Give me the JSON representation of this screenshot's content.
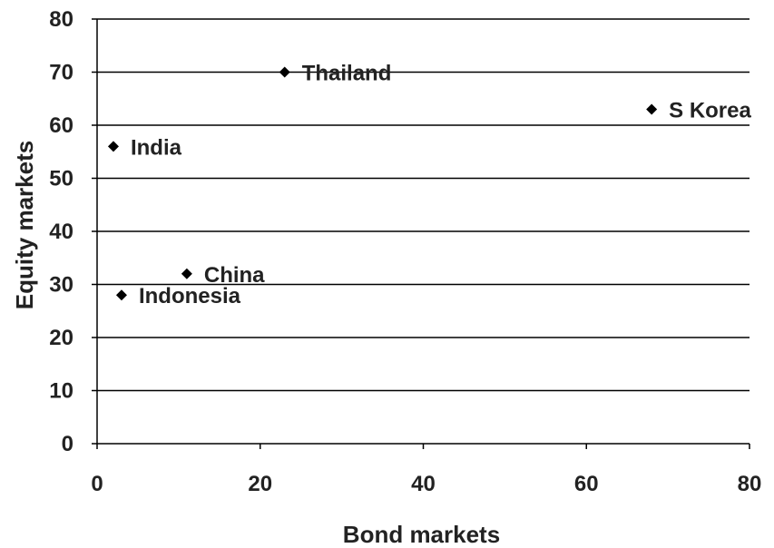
{
  "chart_data": {
    "type": "scatter",
    "title": "",
    "xlabel": "Bond markets",
    "ylabel": "Equity markets",
    "xlim": [
      0,
      80
    ],
    "ylim": [
      0,
      80
    ],
    "xticks": [
      0,
      20,
      40,
      60,
      80
    ],
    "yticks": [
      0,
      10,
      20,
      30,
      40,
      50,
      60,
      70,
      80
    ],
    "grid": "horizontal",
    "legend": "none",
    "marker": "diamond",
    "colors": {
      "marker": "#000000",
      "grid": "#000000",
      "text": "#222222"
    },
    "points": [
      {
        "label": "Thailand",
        "x": 23,
        "y": 70
      },
      {
        "label": "S Korea",
        "x": 68,
        "y": 63
      },
      {
        "label": "India",
        "x": 2,
        "y": 56
      },
      {
        "label": "China",
        "x": 11,
        "y": 32
      },
      {
        "label": "Indonesia",
        "x": 3,
        "y": 28
      }
    ]
  }
}
